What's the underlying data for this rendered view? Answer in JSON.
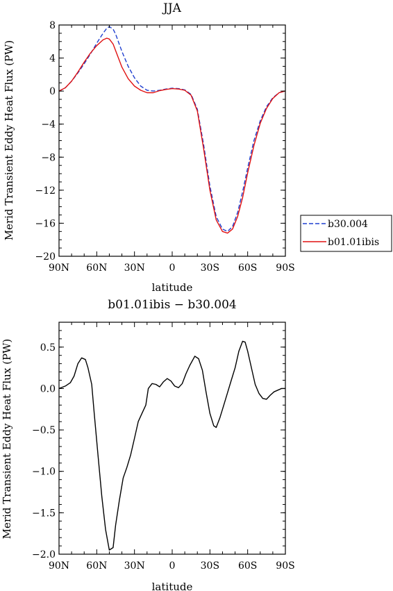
{
  "chart_data": [
    {
      "type": "line",
      "title": "JJA",
      "xlabel": "latitude",
      "ylabel": "Merid Transient Eddy Heat Flux (PW)",
      "xlim": [
        90,
        -90
      ],
      "ylim": [
        -20,
        8
      ],
      "xticks": [
        {
          "value": 90,
          "label": "90N"
        },
        {
          "value": 60,
          "label": "60N"
        },
        {
          "value": 30,
          "label": "30N"
        },
        {
          "value": 0,
          "label": "0"
        },
        {
          "value": -30,
          "label": "30S"
        },
        {
          "value": -60,
          "label": "60S"
        },
        {
          "value": -90,
          "label": "90S"
        }
      ],
      "yticks": [
        8,
        4,
        0,
        -4,
        -8,
        -12,
        -16,
        -20
      ],
      "legend": "right",
      "series": [
        {
          "name": "b30.004",
          "color": "#1f3fcf",
          "style": "dashed",
          "x": [
            90,
            85,
            80,
            75,
            70,
            65,
            60,
            55,
            52,
            50,
            47,
            45,
            40,
            35,
            30,
            25,
            20,
            15,
            10,
            5,
            0,
            -5,
            -10,
            -15,
            -20,
            -25,
            -30,
            -35,
            -40,
            -44,
            -48,
            -52,
            -56,
            -60,
            -65,
            -70,
            -75,
            -80,
            -85,
            -90
          ],
          "y": [
            0,
            0.4,
            1.2,
            2.2,
            3.3,
            4.5,
            5.8,
            7.0,
            7.6,
            7.8,
            7.5,
            6.9,
            4.8,
            3.0,
            1.6,
            0.6,
            0.1,
            0,
            0.1,
            0.25,
            0.35,
            0.3,
            0.15,
            -0.4,
            -2.2,
            -6.5,
            -11.5,
            -15.2,
            -16.7,
            -17.0,
            -16.4,
            -14.7,
            -12.2,
            -9.3,
            -6.0,
            -3.6,
            -1.9,
            -0.8,
            -0.2,
            0
          ]
        },
        {
          "name": "b01.01ibis",
          "color": "#e01010",
          "style": "solid",
          "x": [
            90,
            85,
            80,
            75,
            70,
            65,
            60,
            55,
            52,
            50,
            47,
            45,
            40,
            35,
            30,
            25,
            20,
            15,
            10,
            5,
            0,
            -5,
            -10,
            -15,
            -20,
            -25,
            -30,
            -35,
            -40,
            -44,
            -48,
            -52,
            -56,
            -60,
            -65,
            -70,
            -75,
            -80,
            -85,
            -90
          ],
          "y": [
            0,
            0.4,
            1.2,
            2.3,
            3.5,
            4.6,
            5.5,
            6.2,
            6.4,
            6.3,
            5.7,
            4.9,
            2.9,
            1.5,
            0.6,
            0.1,
            -0.2,
            -0.2,
            0.05,
            0.2,
            0.3,
            0.25,
            0.1,
            -0.5,
            -2.4,
            -7.0,
            -12.0,
            -15.6,
            -17.0,
            -17.2,
            -16.7,
            -15.2,
            -12.9,
            -9.9,
            -6.6,
            -3.9,
            -2.1,
            -0.9,
            -0.2,
            0
          ]
        }
      ]
    },
    {
      "type": "line",
      "title": "b01.01ibis − b30.004",
      "xlabel": "latitude",
      "ylabel": "Merid Transient Eddy Heat Flux (PW)",
      "xlim": [
        90,
        -90
      ],
      "ylim": [
        -2.0,
        0.8
      ],
      "xticks": [
        {
          "value": 90,
          "label": "90N"
        },
        {
          "value": 60,
          "label": "60N"
        },
        {
          "value": 30,
          "label": "30N"
        },
        {
          "value": 0,
          "label": "0"
        },
        {
          "value": -30,
          "label": "30S"
        },
        {
          "value": -60,
          "label": "60S"
        },
        {
          "value": -90,
          "label": "90S"
        }
      ],
      "yticks": [
        {
          "value": 0.5,
          "label": "0.5"
        },
        {
          "value": 0.0,
          "label": "0.0"
        },
        {
          "value": -0.5,
          "label": "−0.5"
        },
        {
          "value": -1.0,
          "label": "−1.0"
        },
        {
          "value": -1.5,
          "label": "−1.5"
        },
        {
          "value": -2.0,
          "label": "−2.0"
        }
      ],
      "series": [
        {
          "color": "#000000",
          "style": "solid",
          "x": [
            90,
            85,
            81,
            78,
            75,
            72,
            69,
            67,
            64,
            62,
            59,
            56,
            53,
            50,
            47,
            45,
            42,
            39,
            36,
            33,
            30,
            27,
            24,
            21,
            19,
            16,
            13,
            10,
            7,
            4,
            1,
            -2,
            -5,
            -8,
            -11,
            -14,
            -18,
            -21,
            -24,
            -27,
            -30,
            -33,
            -35,
            -38,
            -41,
            -44,
            -47,
            -50,
            -53,
            -56,
            -58,
            -60,
            -63,
            -66,
            -69,
            -72,
            -75,
            -78,
            -81,
            -84,
            -87,
            -90
          ],
          "y": [
            0.0,
            0.03,
            0.07,
            0.15,
            0.3,
            0.37,
            0.35,
            0.25,
            0.05,
            -0.3,
            -0.8,
            -1.3,
            -1.7,
            -1.95,
            -1.92,
            -1.65,
            -1.35,
            -1.08,
            -0.95,
            -0.8,
            -0.6,
            -0.4,
            -0.3,
            -0.2,
            0.0,
            0.06,
            0.05,
            0.02,
            0.08,
            0.12,
            0.09,
            0.03,
            0.01,
            0.06,
            0.18,
            0.28,
            0.39,
            0.36,
            0.22,
            -0.05,
            -0.3,
            -0.45,
            -0.47,
            -0.35,
            -0.2,
            -0.05,
            0.1,
            0.25,
            0.45,
            0.57,
            0.56,
            0.45,
            0.25,
            0.05,
            -0.06,
            -0.12,
            -0.13,
            -0.08,
            -0.04,
            -0.02,
            0.0,
            0.0
          ]
        }
      ]
    }
  ]
}
